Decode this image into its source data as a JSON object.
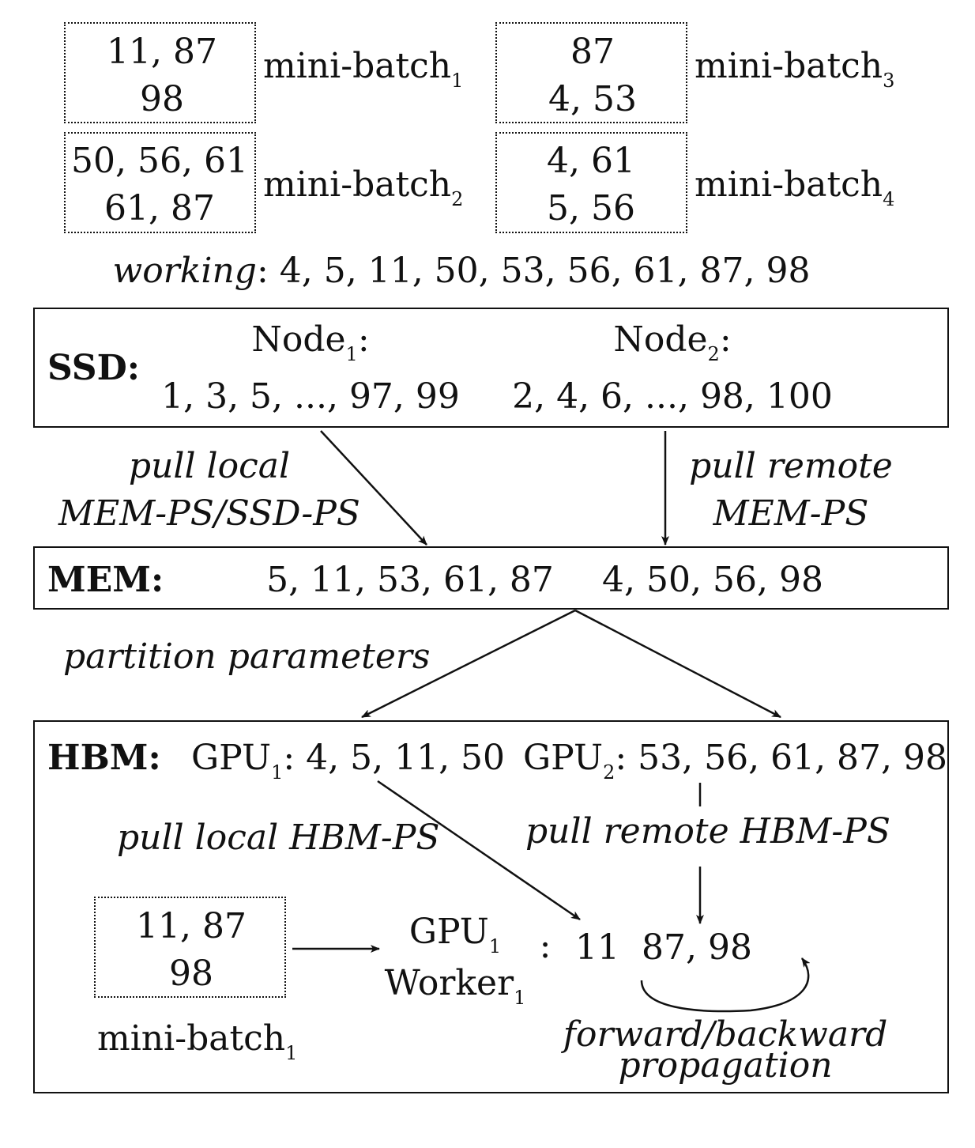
{
  "mini_batches": [
    {
      "line1": "11, 87",
      "line2": "98",
      "label": "mini-batch",
      "sub": "1"
    },
    {
      "line1": "50, 56, 61",
      "line2": "61, 87",
      "label": "mini-batch",
      "sub": "2"
    },
    {
      "line1": "87",
      "line2": "4, 53",
      "label": "mini-batch",
      "sub": "3"
    },
    {
      "line1": "4, 61",
      "line2": "5, 56",
      "label": "mini-batch",
      "sub": "4"
    }
  ],
  "working": {
    "label": "working",
    "values": ": 4, 5, 11, 50, 53, 56, 61, 87, 98"
  },
  "ssd": {
    "label": "SSD:",
    "node1": {
      "name": "Node",
      "sub": "1",
      "suffix": ":",
      "values": "1, 3, 5, ..., 97, 99"
    },
    "node2": {
      "name": "Node",
      "sub": "2",
      "suffix": ":",
      "values": "2, 4, 6, ..., 98, 100"
    }
  },
  "pull_local": {
    "line1": "pull local",
    "line2": "MEM-PS/SSD-PS"
  },
  "pull_remote": {
    "line1": "pull remote",
    "line2": "MEM-PS"
  },
  "mem": {
    "label": "MEM:",
    "values1": "5, 11, 53, 61, 87",
    "values2": "4, 50, 56, 98"
  },
  "partition": "partition parameters",
  "hbm": {
    "label": "HBM:",
    "gpu1": {
      "name": "GPU",
      "sub": "1",
      "values": ": 4, 5, 11, 50"
    },
    "gpu2": {
      "name": "GPU",
      "sub": "2",
      "values": ": 53, 56, 61, 87, 98"
    },
    "pull_local": "pull local HBM-PS",
    "pull_remote": "pull remote HBM-PS",
    "batch": {
      "line1": "11, 87",
      "line2": "98",
      "label": "mini-batch",
      "sub": "1"
    },
    "worker": {
      "gpu": "GPU",
      "gpu_sub": "1",
      "worker": "Worker",
      "worker_sub": "1",
      "colon": ":"
    },
    "local_value": "11",
    "remote_values": "87, 98",
    "propagation": {
      "line1": "forward/backward",
      "line2": "propagation"
    }
  }
}
